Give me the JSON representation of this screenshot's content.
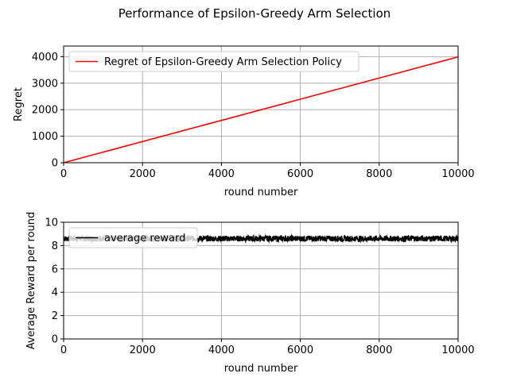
{
  "figure": {
    "suptitle": "Performance of Epsilon-Greedy Arm Selection"
  },
  "chart_data": [
    {
      "type": "line",
      "title": "",
      "xlabel": "round number",
      "ylabel": "Regret",
      "xlim": [
        0,
        10000
      ],
      "ylim": [
        0,
        4400
      ],
      "xticks": [
        "0",
        "2000",
        "4000",
        "6000",
        "8000",
        "10000"
      ],
      "yticks": [
        "0",
        "1000",
        "2000",
        "3000",
        "4000"
      ],
      "grid": true,
      "legend_position": "upper-left",
      "series": [
        {
          "name": "Regret of Epsilon-Greedy Arm Selection Policy",
          "color": "#ff0000",
          "x": [
            0,
            10000
          ],
          "y": [
            0,
            3990
          ]
        }
      ]
    },
    {
      "type": "line",
      "title": "",
      "xlabel": "round number",
      "ylabel": "Average Reward per round",
      "xlim": [
        0,
        10000
      ],
      "ylim": [
        0,
        10
      ],
      "xticks": [
        "0",
        "2000",
        "4000",
        "6000",
        "8000",
        "10000"
      ],
      "yticks": [
        "0",
        "2",
        "4",
        "6",
        "8",
        "10"
      ],
      "grid": true,
      "legend_position": "upper-left",
      "series": [
        {
          "name": "average reward",
          "color": "#000000",
          "x_range": [
            0,
            10000
          ],
          "mean": 8.6,
          "band": [
            8.35,
            8.85
          ]
        }
      ]
    }
  ]
}
